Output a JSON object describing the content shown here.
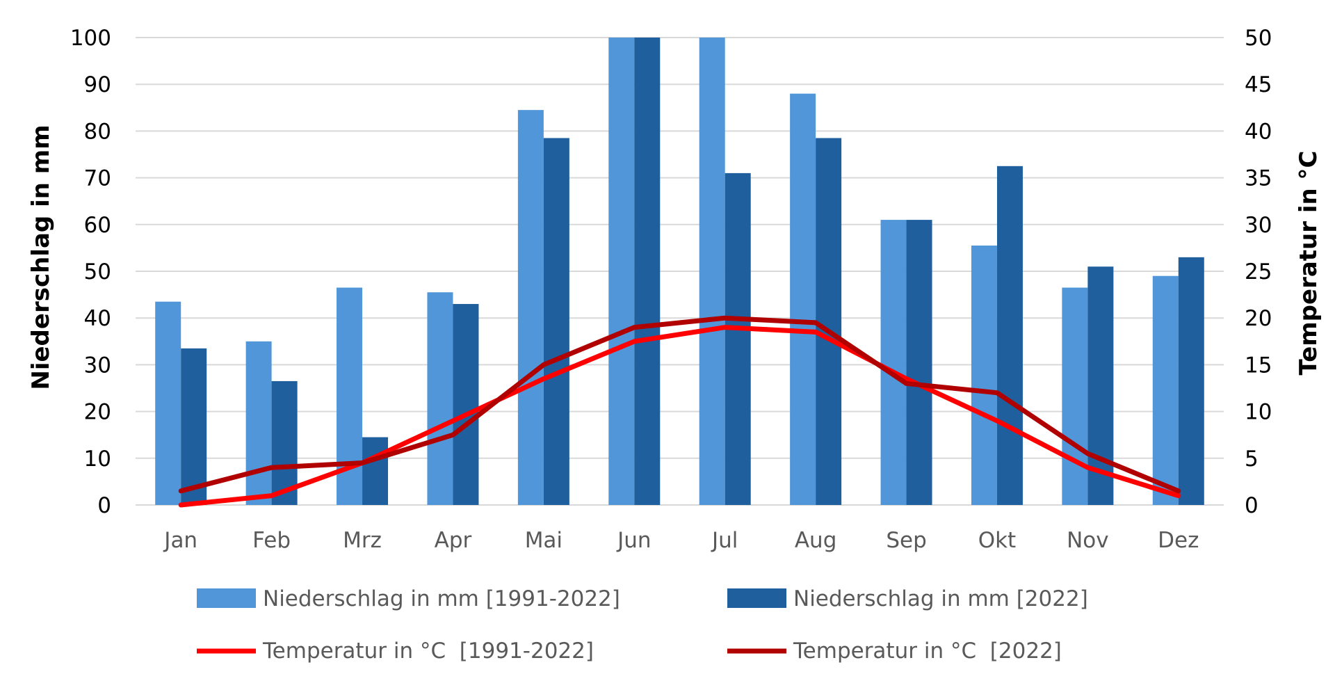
{
  "chart_data": {
    "type": "bar",
    "categories": [
      "Jan",
      "Feb",
      "Mrz",
      "Apr",
      "Mai",
      "Jun",
      "Jul",
      "Aug",
      "Sep",
      "Okt",
      "Nov",
      "Dez"
    ],
    "series": [
      {
        "name": "Niederschlag in mm [1991-2022]",
        "type": "bar",
        "axis": "left",
        "color": "#5096D8",
        "values": [
          43.5,
          35,
          46.5,
          45.5,
          84.5,
          100,
          100,
          88,
          61,
          55.5,
          46.5,
          49
        ]
      },
      {
        "name": "Niederschlag in mm [2022]",
        "type": "bar",
        "axis": "left",
        "color": "#1F5F9E",
        "values": [
          33.5,
          26.5,
          14.5,
          43,
          78.5,
          100,
          71,
          78.5,
          61,
          72.5,
          51,
          53
        ]
      },
      {
        "name": "Temperatur in °C  [1991-2022]",
        "type": "line",
        "axis": "right",
        "color": "#FF0000",
        "values": [
          0,
          1,
          4.5,
          9,
          13.5,
          17.5,
          19,
          18.5,
          13.5,
          9,
          4,
          1
        ]
      },
      {
        "name": "Temperatur in °C  [2022]",
        "type": "line",
        "axis": "right",
        "color": "#B00000",
        "values": [
          1.5,
          4,
          4.5,
          7.5,
          15,
          19,
          20,
          19.5,
          13,
          12,
          5.5,
          1.5
        ]
      }
    ],
    "ylabel": "Niederschlag in mm",
    "ylabel_right": "Temperatur in °C",
    "ylim": [
      0,
      100
    ],
    "ylim_right": [
      0,
      50
    ],
    "yticks": [
      "0",
      "10",
      "20",
      "30",
      "40",
      "50",
      "60",
      "70",
      "80",
      "90",
      "100"
    ],
    "yticks_right": [
      "0",
      "5",
      "10",
      "15",
      "20",
      "25",
      "30",
      "35",
      "40",
      "45",
      "50"
    ],
    "grid": true,
    "legend": "bottom"
  }
}
